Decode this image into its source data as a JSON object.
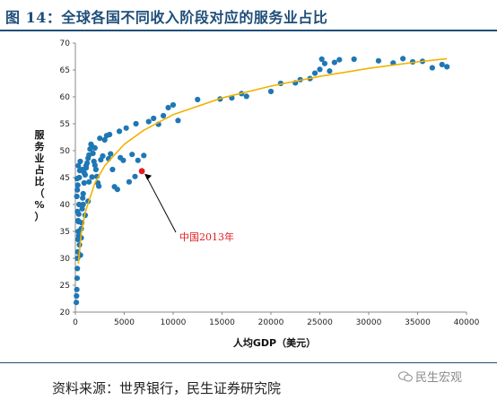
{
  "figure": {
    "title": "图 14：全球各国不同收入阶段对应的服务业占比"
  },
  "footer": {
    "source": "资料来源：世界银行，民生证券研究院",
    "watermark": "民生宏观",
    "watermark_icon": "wechat-icon"
  },
  "chart_data": {
    "type": "scatter",
    "xlabel": "人均GDP（美元）",
    "ylabel": "服务业占比（%）",
    "xlim": [
      0,
      40000
    ],
    "ylim": [
      20,
      70
    ],
    "x_ticks": [
      0,
      5000,
      10000,
      15000,
      20000,
      25000,
      30000,
      35000,
      40000
    ],
    "y_ticks": [
      20,
      25,
      30,
      35,
      40,
      45,
      50,
      55,
      60,
      65,
      70
    ],
    "grid": false,
    "colors": {
      "points": "#1f77b4",
      "trend": "#f2b200",
      "highlight": "#e41a1c",
      "annotation": "#e41a1c"
    },
    "trend": {
      "type": "logarithmic",
      "points": [
        [
          300,
          29.0
        ],
        [
          600,
          34.5
        ],
        [
          1000,
          38.5
        ],
        [
          2000,
          44.0
        ],
        [
          3000,
          47.2
        ],
        [
          5000,
          51.2
        ],
        [
          7000,
          53.8
        ],
        [
          10000,
          56.7
        ],
        [
          15000,
          59.8
        ],
        [
          20000,
          62.0
        ],
        [
          25000,
          63.8
        ],
        [
          30000,
          65.3
        ],
        [
          35000,
          66.5
        ],
        [
          38000,
          67.1
        ]
      ]
    },
    "highlight": {
      "label": "中国2013年",
      "x": 6800,
      "y": 46.2
    },
    "points": [
      [
        100,
        21.8
      ],
      [
        120,
        23.0
      ],
      [
        150,
        24.2
      ],
      [
        180,
        26.3
      ],
      [
        200,
        28.1
      ],
      [
        220,
        30.0
      ],
      [
        250,
        31.2
      ],
      [
        270,
        33.5
      ],
      [
        300,
        35.0
      ],
      [
        320,
        36.8
      ],
      [
        350,
        38.2
      ],
      [
        380,
        40.0
      ],
      [
        150,
        41.5
      ],
      [
        200,
        42.7
      ],
      [
        250,
        43.6
      ],
      [
        180,
        44.8
      ],
      [
        400,
        45.0
      ],
      [
        450,
        46.3
      ],
      [
        300,
        47.2
      ],
      [
        500,
        48.0
      ],
      [
        220,
        38.7
      ],
      [
        280,
        37.0
      ],
      [
        350,
        34.2
      ],
      [
        420,
        32.5
      ],
      [
        520,
        30.6
      ],
      [
        600,
        33.8
      ],
      [
        650,
        36.6
      ],
      [
        700,
        39.2
      ],
      [
        750,
        41.2
      ],
      [
        800,
        42.0
      ],
      [
        900,
        44.0
      ],
      [
        1000,
        45.5
      ],
      [
        1100,
        46.8
      ],
      [
        1200,
        47.7
      ],
      [
        1300,
        48.6
      ],
      [
        1400,
        49.2
      ],
      [
        1500,
        50.3
      ],
      [
        1600,
        51.2
      ],
      [
        1700,
        50.8
      ],
      [
        1800,
        49.5
      ],
      [
        1900,
        48.0
      ],
      [
        2000,
        47.3
      ],
      [
        2100,
        46.5
      ],
      [
        2200,
        45.2
      ],
      [
        2300,
        44.0
      ],
      [
        2400,
        43.4
      ],
      [
        2600,
        48.3
      ],
      [
        2800,
        49.0
      ],
      [
        3000,
        52.0
      ],
      [
        3200,
        52.8
      ],
      [
        3400,
        48.5
      ],
      [
        3600,
        49.4
      ],
      [
        3800,
        46.5
      ],
      [
        4000,
        43.3
      ],
      [
        4300,
        42.8
      ],
      [
        4600,
        48.7
      ],
      [
        4900,
        48.2
      ],
      [
        5200,
        54.2
      ],
      [
        5500,
        44.2
      ],
      [
        5800,
        49.3
      ],
      [
        6100,
        45.2
      ],
      [
        6400,
        48.2
      ],
      [
        7000,
        49.1
      ],
      [
        600,
        35.5
      ],
      [
        1000,
        38.0
      ],
      [
        1300,
        40.6
      ],
      [
        900,
        45.9
      ],
      [
        1100,
        47.2
      ],
      [
        700,
        46.5
      ],
      [
        800,
        40.0
      ],
      [
        1400,
        44.2
      ],
      [
        1700,
        45.1
      ],
      [
        2000,
        50.5
      ],
      [
        2500,
        52.3
      ],
      [
        3500,
        53.0
      ],
      [
        4500,
        53.6
      ],
      [
        6200,
        55.0
      ],
      [
        7500,
        55.4
      ],
      [
        8000,
        56.0
      ],
      [
        8500,
        54.9
      ],
      [
        9000,
        56.5
      ],
      [
        9500,
        58.0
      ],
      [
        10000,
        58.5
      ],
      [
        10500,
        55.6
      ],
      [
        12500,
        59.5
      ],
      [
        14800,
        59.6
      ],
      [
        16000,
        59.8
      ],
      [
        17000,
        60.6
      ],
      [
        17500,
        60.1
      ],
      [
        20000,
        61.0
      ],
      [
        21000,
        62.5
      ],
      [
        22500,
        62.6
      ],
      [
        23000,
        63.2
      ],
      [
        24500,
        64.4
      ],
      [
        25000,
        65.1
      ],
      [
        25500,
        66.2
      ],
      [
        26000,
        64.8
      ],
      [
        26500,
        66.4
      ],
      [
        27000,
        66.9
      ],
      [
        28500,
        67.0
      ],
      [
        31000,
        66.7
      ],
      [
        32500,
        66.3
      ],
      [
        33500,
        67.1
      ],
      [
        34500,
        66.5
      ],
      [
        35500,
        66.6
      ],
      [
        36500,
        65.4
      ],
      [
        37500,
        66.0
      ],
      [
        38000,
        65.6
      ],
      [
        24000,
        63.4
      ],
      [
        25200,
        67.0
      ]
    ]
  }
}
